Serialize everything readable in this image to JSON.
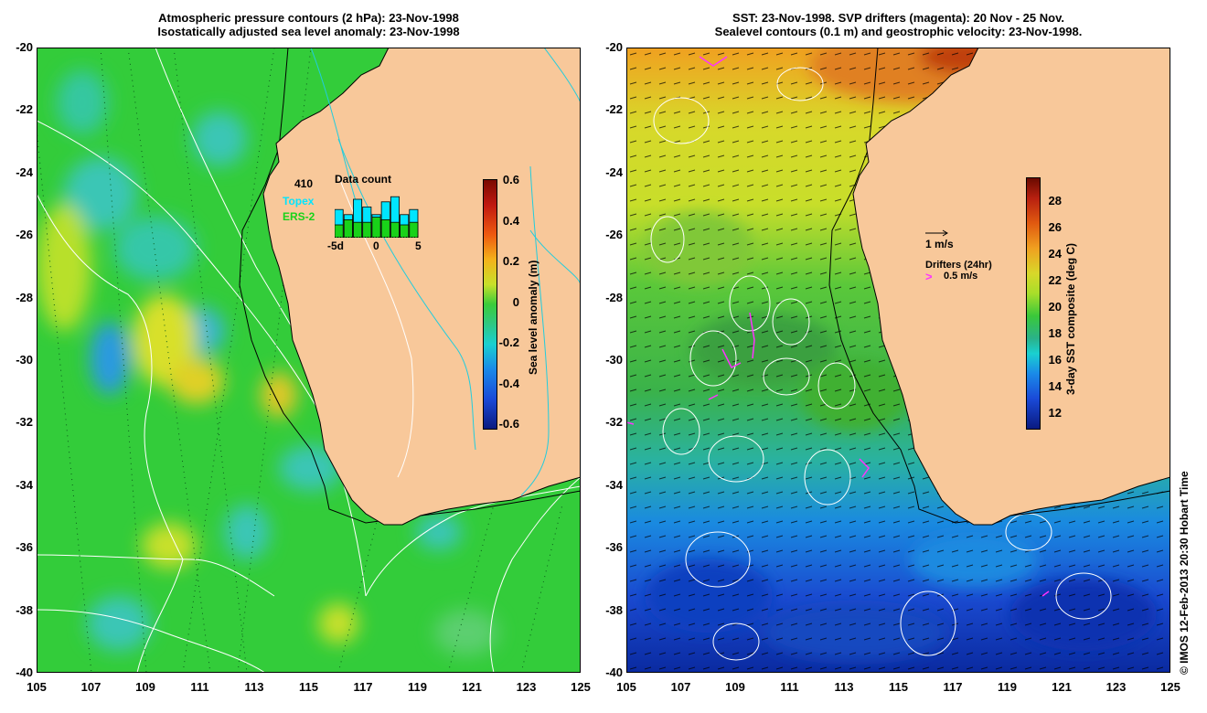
{
  "left_panel": {
    "title_line1": "Atmospheric pressure contours (2 hPa): 23-Nov-1998",
    "title_line2": "Isostatically adjusted sea level anomaly: 23-Nov-1998",
    "inset": {
      "count": "410",
      "heading": "Data count",
      "topex_label": "Topex",
      "ers_label": "ERS-2",
      "x_start": "-5d",
      "x_mid": "0",
      "x_end": "5",
      "topex_color": "#00e5ff",
      "ers_color": "#19d219",
      "bars_total": [
        0.55,
        0.45,
        0.75,
        0.6,
        0.45,
        0.7,
        0.8,
        0.45,
        0.55
      ],
      "bars_ers": [
        0.25,
        0.35,
        0.3,
        0.3,
        0.4,
        0.35,
        0.3,
        0.25,
        0.3
      ]
    },
    "colorbar": {
      "label": "Sea level anomaly (m)",
      "ticks": [
        "0.6",
        "0.4",
        "0.2",
        "0",
        "-0.2",
        "-0.4",
        "-0.6"
      ]
    }
  },
  "right_panel": {
    "title_line1": "SST: 23-Nov-1998. SVP drifters (magenta): 20 Nov - 25 Nov.",
    "title_line2": "Sealevel contours (0.1 m) and geostrophic velocity: 23-Nov-1998.",
    "velocity_key": "1 m/s",
    "drifters_heading": "Drifters (24hr)",
    "drifters_key": "0.5 m/s",
    "colorbar": {
      "label": "3-day SST composite (deg C)",
      "ticks": [
        "28",
        "26",
        "24",
        "22",
        "20",
        "18",
        "16",
        "14",
        "12"
      ]
    }
  },
  "axes": {
    "lat_ticks": [
      "-20",
      "-22",
      "-24",
      "-26",
      "-28",
      "-30",
      "-32",
      "-34",
      "-36",
      "-38",
      "-40"
    ],
    "lon_ticks": [
      "105",
      "107",
      "109",
      "111",
      "113",
      "115",
      "117",
      "119",
      "121",
      "123",
      "125"
    ]
  },
  "credit": "© IMOS 12-Feb-2013 20:30 Hobart Time",
  "colors": {
    "land": "#f8c89a",
    "sla_zero": "#2fc83c",
    "sst_warm": "#e0801a",
    "sst_cold": "#0a3aa8"
  }
}
